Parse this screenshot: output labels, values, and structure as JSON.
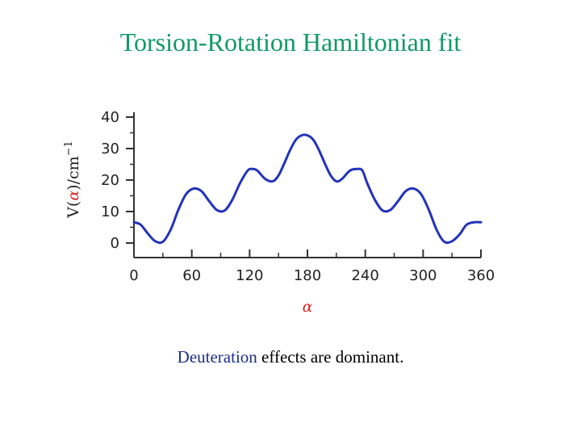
{
  "slide": {
    "title": "Torsion-Rotation Hamiltonian fit",
    "caption_highlight": "Deuteration",
    "caption_rest": " effects are dominant."
  },
  "chart_data": {
    "type": "line",
    "xlabel": "α",
    "ylabel_prefix": "V(",
    "ylabel_var": "α",
    "ylabel_suffix": ")/cm",
    "ylabel_exp": "−1",
    "xlim": [
      0,
      360
    ],
    "ylim": [
      0,
      40
    ],
    "xticks": [
      0,
      60,
      120,
      180,
      240,
      300,
      360
    ],
    "yticks": [
      0,
      10,
      20,
      30,
      40
    ],
    "colors": {
      "line": "#2233bb",
      "axis_var": "#dd2222"
    },
    "series": [
      {
        "x": [
          0,
          7,
          15,
          22,
          30,
          38,
          46,
          54,
          62,
          70,
          78,
          86,
          94,
          102,
          110,
          118,
          123,
          128,
          136,
          144,
          150,
          156,
          162,
          168,
          174,
          180,
          186,
          192,
          198,
          204,
          210,
          216,
          224,
          232,
          237,
          242,
          250,
          258,
          266,
          274,
          282,
          290,
          298,
          306,
          314,
          322,
          330,
          338,
          345,
          353,
          360
        ],
        "y": [
          6.6,
          5.8,
          2.8,
          0.6,
          0.4,
          4.2,
          10.5,
          15.5,
          17.3,
          16.5,
          13.3,
          10.5,
          10.3,
          13.7,
          19,
          23,
          23.5,
          23,
          20.4,
          19.6,
          21.5,
          25.3,
          29.5,
          32.8,
          34.2,
          34.2,
          32.8,
          29.5,
          25.3,
          21.5,
          19.6,
          20.4,
          23,
          23.5,
          23,
          19,
          13.7,
          10.3,
          10.5,
          13.3,
          16.5,
          17.3,
          15.5,
          10.5,
          4.2,
          0.4,
          0.6,
          2.8,
          5.8,
          6.6,
          6.6
        ]
      }
    ]
  }
}
